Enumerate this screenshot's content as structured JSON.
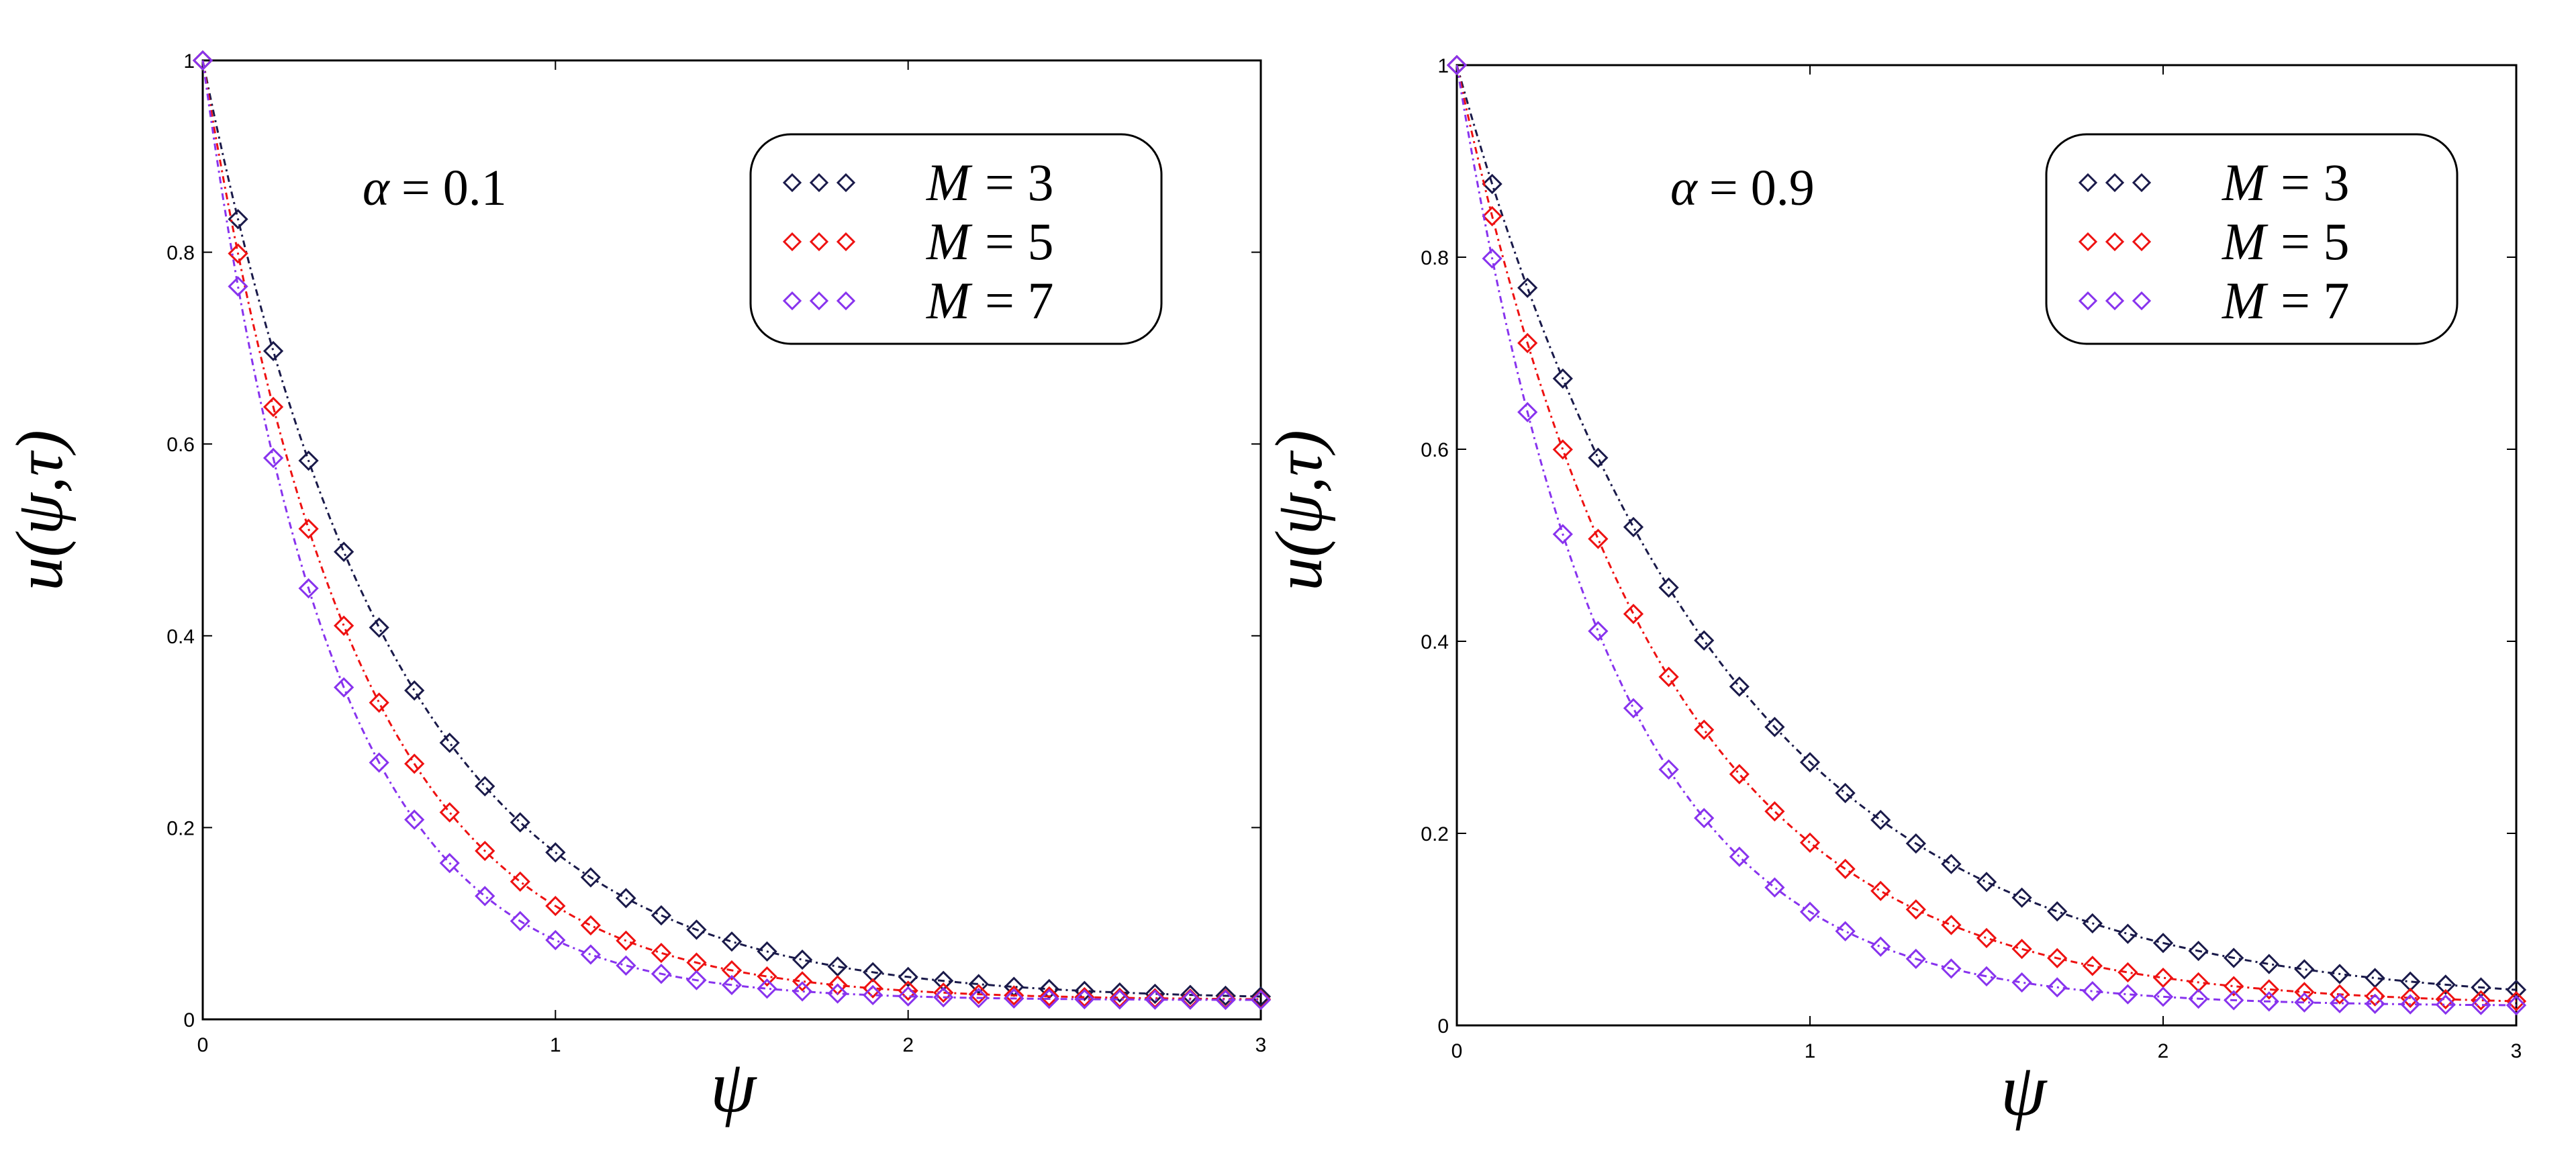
{
  "chart_data": [
    {
      "type": "line",
      "title": "",
      "annotation": {
        "symbol": "α",
        "eq": "= 0.1"
      },
      "xlabel": "ψ",
      "ylabel": "u(ψ,τ)",
      "xlim": [
        0,
        3
      ],
      "ylim": [
        0,
        1
      ],
      "xticks": [
        "0",
        "1",
        "2",
        "3"
      ],
      "yticks": [
        "0",
        "0.2",
        "0.4",
        "0.6",
        "0.8",
        "1"
      ],
      "legend_position": "top-right",
      "series": [
        {
          "name": "M = 3",
          "var": "M",
          "eq": "= 3",
          "color": "#1a1a4a",
          "decay": 1.85,
          "offset": 0.02
        },
        {
          "name": "M = 5",
          "var": "M",
          "eq": "= 5",
          "color": "#ee1111",
          "decay": 2.3,
          "offset": 0.02
        },
        {
          "name": "M = 7",
          "var": "M",
          "eq": "= 7",
          "color": "#8833ee",
          "decay": 2.75,
          "offset": 0.02
        }
      ]
    },
    {
      "type": "line",
      "title": "",
      "annotation": {
        "symbol": "α",
        "eq": "= 0.9"
      },
      "xlabel": "ψ",
      "ylabel": "u(ψ,τ)",
      "xlim": [
        0,
        3
      ],
      "ylim": [
        0,
        1
      ],
      "xticks": [
        "0",
        "1",
        "2",
        "3"
      ],
      "yticks": [
        "0",
        "0.2",
        "0.4",
        "0.6",
        "0.8",
        "1"
      ],
      "legend_position": "top-right",
      "series": [
        {
          "name": "M = 3",
          "var": "M",
          "eq": "= 3",
          "color": "#1a1a4a",
          "decay": 1.35,
          "offset": 0.02
        },
        {
          "name": "M = 5",
          "var": "M",
          "eq": "= 5",
          "color": "#ee1111",
          "decay": 1.75,
          "offset": 0.02
        },
        {
          "name": "M = 7",
          "var": "M",
          "eq": "= 7",
          "color": "#8833ee",
          "decay": 2.3,
          "offset": 0.02
        }
      ]
    }
  ]
}
